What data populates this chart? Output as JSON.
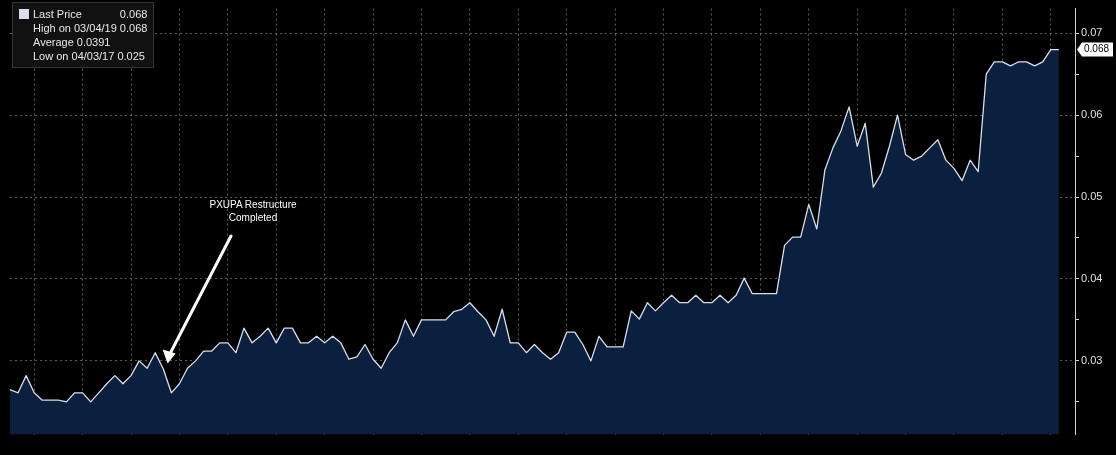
{
  "chart_data": {
    "type": "area",
    "categories": [
      null,
      null,
      null,
      null,
      null,
      null,
      null,
      null,
      null,
      null,
      null,
      null,
      null,
      null,
      null,
      null,
      null,
      null,
      null,
      null,
      null,
      null,
      null,
      null,
      null,
      null,
      null,
      null,
      null,
      null,
      null,
      null,
      null,
      null,
      null,
      null,
      null,
      null,
      null,
      null,
      null,
      null,
      null,
      null,
      null,
      null,
      null,
      null,
      null,
      null,
      null,
      null,
      null,
      null,
      null,
      null,
      null,
      null,
      null,
      null,
      null,
      null,
      null,
      null,
      null,
      null,
      null,
      null,
      null,
      null,
      null,
      null,
      null,
      null,
      null,
      null,
      null,
      null,
      null,
      null,
      null,
      null,
      null,
      null,
      null,
      null,
      null,
      null,
      null,
      null,
      null,
      null,
      null,
      null,
      null,
      null,
      null,
      null,
      null,
      null,
      null,
      null,
      null,
      null,
      null,
      null,
      null,
      null,
      null,
      null,
      null,
      null,
      null,
      null,
      null,
      null,
      null,
      null,
      null,
      null,
      null,
      null,
      null,
      null,
      null,
      null,
      null,
      null,
      null,
      null,
      null,
      null,
      null
    ],
    "series": [
      {
        "name": "Last Price",
        "color": "#d8dee9",
        "values": [
          0.0265,
          0.0261,
          0.0282,
          0.0261,
          0.0252,
          0.0252,
          0.0252,
          0.025,
          0.0261,
          0.0261,
          0.025,
          0.0261,
          0.0272,
          0.0282,
          0.0272,
          0.0282,
          0.03,
          0.0291,
          0.031,
          0.029,
          0.0261,
          0.0272,
          0.0291,
          0.03,
          0.0312,
          0.0312,
          0.0322,
          0.0322,
          0.031,
          0.034,
          0.0322,
          0.033,
          0.034,
          0.0322,
          0.034,
          0.034,
          0.0322,
          0.0322,
          0.033,
          0.0322,
          0.033,
          0.0322,
          0.0302,
          0.0305,
          0.032,
          0.0302,
          0.0291,
          0.031,
          0.0322,
          0.035,
          0.033,
          0.035,
          0.035,
          0.035,
          0.035,
          0.036,
          0.0363,
          0.0371,
          0.036,
          0.035,
          0.033,
          0.0363,
          0.0322,
          0.0322,
          0.031,
          0.032,
          0.031,
          0.0302,
          0.031,
          0.0335,
          0.0335,
          0.032,
          0.03,
          0.033,
          0.0317,
          0.0317,
          0.0317,
          0.0361,
          0.0351,
          0.0371,
          0.0361,
          0.0371,
          0.038,
          0.0371,
          0.0371,
          0.038,
          0.0371,
          0.0371,
          0.038,
          0.0371,
          0.038,
          0.0401,
          0.0382,
          0.0382,
          0.0382,
          0.0382,
          0.0441,
          0.0451,
          0.0451,
          0.0491,
          0.0461,
          0.0533,
          0.056,
          0.0581,
          0.061,
          0.0562,
          0.059,
          0.0512,
          0.0529,
          0.0562,
          0.06,
          0.0552,
          0.0545,
          0.055,
          0.056,
          0.057,
          0.0545,
          0.0535,
          0.052,
          0.0545,
          0.0531,
          0.065,
          0.0665,
          0.0665,
          0.066,
          0.0665,
          0.0665,
          0.066,
          0.0665,
          0.068,
          0.068,
          null,
          null
        ]
      }
    ],
    "ylim": [
      0.021,
      0.073
    ],
    "yticks": [
      {
        "value": 0.025,
        "label": null
      },
      0.03,
      {
        "value": 0.035,
        "label": null
      },
      0.04,
      {
        "value": 0.045,
        "label": null
      },
      0.05,
      {
        "value": 0.055,
        "label": null
      },
      0.06,
      {
        "value": 0.065,
        "label": null
      },
      0.07
    ],
    "grid": true,
    "legend": "top left",
    "marker": "none",
    "annotations": [
      "0.068",
      "High on 03/04/19 0.068",
      "Average 0.0391",
      "Low on 04/03/17 0.025",
      "PXUPA Restructure Completed",
      {
        "text": "0.068",
        "y": 0.068
      }
    ]
  }
}
